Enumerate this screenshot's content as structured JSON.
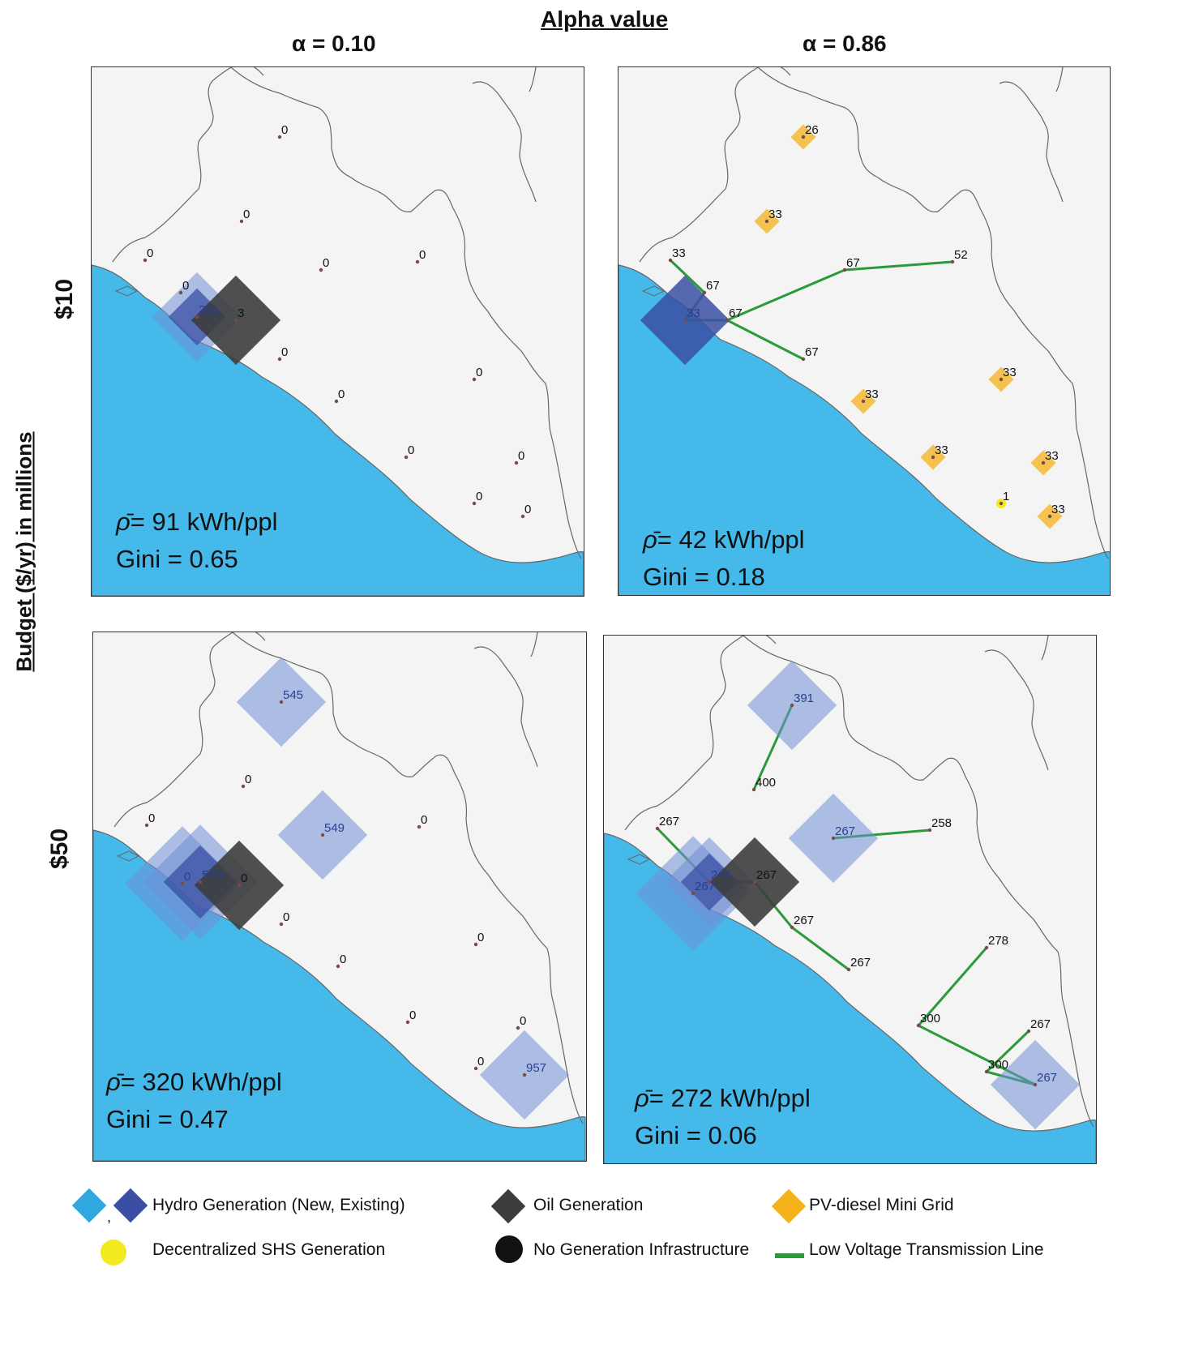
{
  "header": {
    "title": "Alpha value",
    "col_left": "α = 0.10",
    "col_right": "α = 0.86"
  },
  "y_axis": {
    "label": "Budget  ($/yr) in millions",
    "row_top": "$10",
    "row_bottom": "$50"
  },
  "colors": {
    "sea": "#45b9ea",
    "land": "#f4f4f4",
    "border": "#666666",
    "hydro_new": "#2fa8e0",
    "hydro_existing": "#3a4fa3",
    "oil": "#3d3d3d",
    "pv": "#f6b21a",
    "shs": "#f2ea1e",
    "none": "#111111",
    "line": "#2a9a3a"
  },
  "panels": [
    {
      "id": "alpha010-budget10",
      "stats": {
        "rho": "= 91 kWh/ppl",
        "gini": "Gini = 0.65"
      },
      "nodes": [
        {
          "loc": "n01",
          "label": "0"
        },
        {
          "loc": "n02",
          "label": "0"
        },
        {
          "loc": "n03",
          "label": "0"
        },
        {
          "loc": "n04",
          "label": "0"
        },
        {
          "loc": "n05",
          "label": "0"
        },
        {
          "loc": "n06",
          "label": "0"
        },
        {
          "loc": "n07",
          "label": "261",
          "marker": "hydro-both",
          "size": "m"
        },
        {
          "loc": "n08",
          "label": "3",
          "marker": "oil",
          "size": "m"
        },
        {
          "loc": "n09",
          "label": "0"
        },
        {
          "loc": "n10",
          "label": "0"
        },
        {
          "loc": "n11",
          "label": "0"
        },
        {
          "loc": "n12",
          "label": "0"
        },
        {
          "loc": "n13",
          "label": "0"
        },
        {
          "loc": "n14",
          "label": "0"
        },
        {
          "loc": "n15",
          "label": "0"
        }
      ],
      "links": []
    },
    {
      "id": "alpha086-budget10",
      "stats": {
        "rho": "= 42 kWh/ppl",
        "gini": "Gini = 0.18"
      },
      "nodes": [
        {
          "loc": "n01",
          "label": "26",
          "marker": "pv",
          "size": "s"
        },
        {
          "loc": "n02",
          "label": "33",
          "marker": "pv",
          "size": "s"
        },
        {
          "loc": "n03",
          "label": "33"
        },
        {
          "loc": "n04",
          "label": "67"
        },
        {
          "loc": "n05",
          "label": "52"
        },
        {
          "loc": "n06",
          "label": "67"
        },
        {
          "loc": "n07",
          "label": "33",
          "marker": "hydro-existing",
          "size": "m"
        },
        {
          "loc": "n08",
          "label": "67"
        },
        {
          "loc": "n09",
          "label": "67"
        },
        {
          "loc": "n10",
          "label": "33",
          "marker": "pv",
          "size": "s"
        },
        {
          "loc": "n11",
          "label": "33",
          "marker": "pv",
          "size": "s"
        },
        {
          "loc": "n12",
          "label": "33",
          "marker": "pv",
          "size": "s"
        },
        {
          "loc": "n13",
          "label": "33",
          "marker": "pv",
          "size": "s"
        },
        {
          "loc": "n14",
          "label": "1",
          "marker": "shs",
          "size": "s"
        },
        {
          "loc": "n15",
          "label": "33",
          "marker": "pv",
          "size": "s"
        }
      ],
      "links": [
        [
          "n03",
          "n06"
        ],
        [
          "n06",
          "n07"
        ],
        [
          "n07",
          "n08"
        ],
        [
          "n08",
          "n09"
        ],
        [
          "n08",
          "n04"
        ],
        [
          "n04",
          "n05"
        ]
      ]
    },
    {
      "id": "alpha010-budget50",
      "stats": {
        "rho": "=  320 kWh/ppl",
        "gini": "Gini = 0.47"
      },
      "nodes": [
        {
          "loc": "n01",
          "label": "545",
          "marker": "hydro-new",
          "size": "m"
        },
        {
          "loc": "n02",
          "label": "0"
        },
        {
          "loc": "n03",
          "label": "0"
        },
        {
          "loc": "n04",
          "label": "549",
          "marker": "hydro-new",
          "size": "m"
        },
        {
          "loc": "n05",
          "label": "0"
        },
        {
          "loc": "n06",
          "label": "0",
          "marker": "hydro-new",
          "size": "l"
        },
        {
          "loc": "n07",
          "label": "550",
          "marker": "hydro-both",
          "size": "l"
        },
        {
          "loc": "n08",
          "label": "0",
          "marker": "oil",
          "size": "m"
        },
        {
          "loc": "n09",
          "label": "0"
        },
        {
          "loc": "n10",
          "label": "0"
        },
        {
          "loc": "n11",
          "label": "0"
        },
        {
          "loc": "n12",
          "label": "0"
        },
        {
          "loc": "n13",
          "label": "0"
        },
        {
          "loc": "n14",
          "label": "0"
        },
        {
          "loc": "n15",
          "label": "957",
          "marker": "hydro-new",
          "size": "m"
        }
      ],
      "links": []
    },
    {
      "id": "alpha086-budget50",
      "stats": {
        "rho": "= 272 kWh/ppl",
        "gini": "Gini = 0.06"
      },
      "nodes": [
        {
          "loc": "n01",
          "label": "391",
          "marker": "hydro-new",
          "size": "m"
        },
        {
          "loc": "n02",
          "label": "400"
        },
        {
          "loc": "n03",
          "label": "267"
        },
        {
          "loc": "n04",
          "label": "267",
          "marker": "hydro-new",
          "size": "m"
        },
        {
          "loc": "n05",
          "label": "258"
        },
        {
          "loc": "n06",
          "label": "267",
          "marker": "hydro-new",
          "size": "l"
        },
        {
          "loc": "n07",
          "label": "245",
          "marker": "hydro-both",
          "size": "m"
        },
        {
          "loc": "n08",
          "label": "267",
          "marker": "oil",
          "size": "m"
        },
        {
          "loc": "n09",
          "label": "267"
        },
        {
          "loc": "n10",
          "label": "267"
        },
        {
          "loc": "n11",
          "label": "278"
        },
        {
          "loc": "n12",
          "label": "300"
        },
        {
          "loc": "n13",
          "label": "267"
        },
        {
          "loc": "n14",
          "label": "300"
        },
        {
          "loc": "n15",
          "label": "267",
          "marker": "hydro-new",
          "size": "m"
        }
      ],
      "links": [
        [
          "n01",
          "n02"
        ],
        [
          "n03",
          "n07"
        ],
        [
          "n07",
          "n08"
        ],
        [
          "n08",
          "n09"
        ],
        [
          "n09",
          "n10"
        ],
        [
          "n04",
          "n05"
        ],
        [
          "n11",
          "n12"
        ],
        [
          "n12",
          "n15"
        ],
        [
          "n15",
          "n14"
        ],
        [
          "n14",
          "n13"
        ]
      ]
    }
  ],
  "legend": {
    "hydro": "Hydro Generation (New, Existing)",
    "oil": "Oil Generation",
    "pv": "PV-diesel Mini Grid",
    "shs": "Decentralized SHS Generation",
    "none": "No Generation Infrastructure",
    "line": "Low Voltage Transmission Line",
    "separator": ","
  }
}
